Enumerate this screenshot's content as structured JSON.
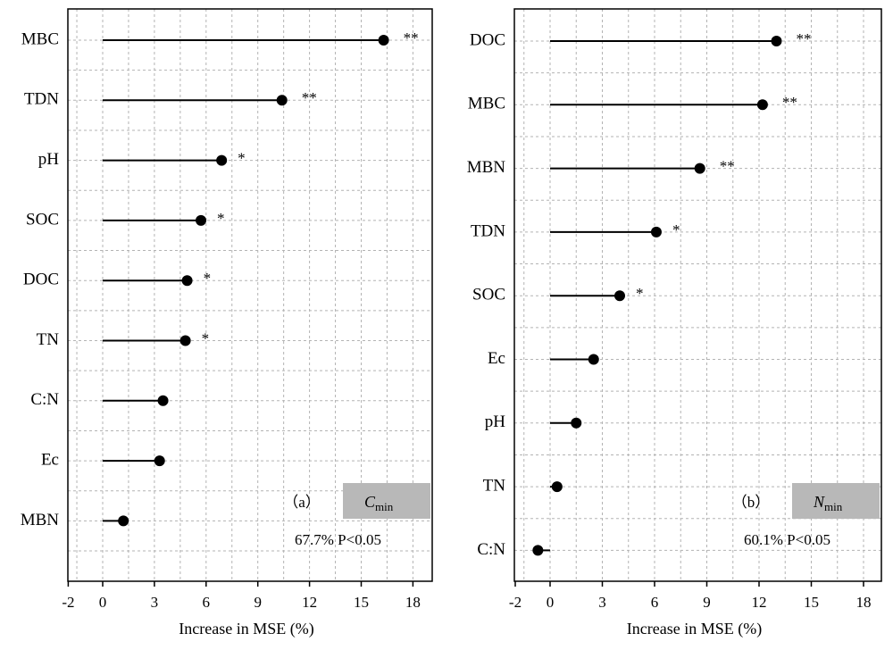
{
  "chart_data": [
    {
      "type": "lollipop",
      "panel_tag": "（a）",
      "box_label": "C",
      "box_label_sub": "min",
      "note": "67.7%  P<0.05",
      "xlabel": "Increase in MSE (%)",
      "xticks": [
        "-2",
        "0",
        "3",
        "6",
        "9",
        "12",
        "15",
        "18"
      ],
      "xlim": [
        -2,
        19
      ],
      "categories": [
        "MBC",
        "TDN",
        "pH",
        "SOC",
        "DOC",
        "TN",
        "C:N",
        "Ec",
        "MBN"
      ],
      "values": [
        16.3,
        10.4,
        6.9,
        5.7,
        4.9,
        4.8,
        3.5,
        3.3,
        1.2
      ],
      "significance": [
        "**",
        "**",
        "*",
        "*",
        "*",
        "*",
        "",
        "",
        ""
      ]
    },
    {
      "type": "lollipop",
      "panel_tag": "（b）",
      "box_label": "N",
      "box_label_sub": "min",
      "note": "60.1%  P<0.05",
      "xlabel": "Increase in MSE (%)",
      "xticks": [
        "-2",
        "0",
        "3",
        "6",
        "9",
        "12",
        "15",
        "18"
      ],
      "xlim": [
        -2,
        19
      ],
      "categories": [
        "DOC",
        "MBC",
        "MBN",
        "TDN",
        "SOC",
        "Ec",
        "pH",
        "TN",
        "C:N"
      ],
      "values": [
        13.0,
        12.2,
        8.6,
        6.1,
        4.0,
        2.5,
        1.5,
        0.4,
        -0.7
      ],
      "significance": [
        "**",
        "**",
        "**",
        "*",
        "*",
        "",
        "",
        "",
        ""
      ]
    }
  ]
}
